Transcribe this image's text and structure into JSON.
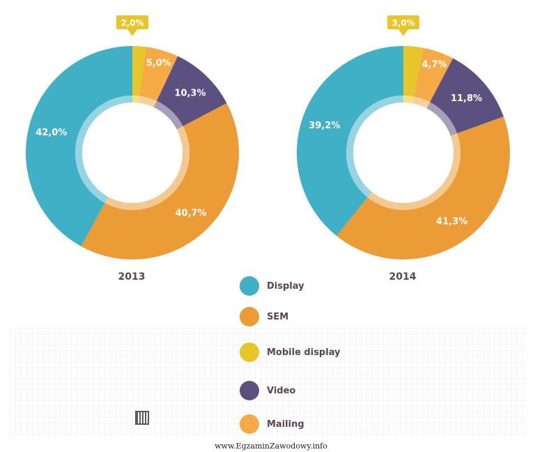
{
  "chart_data": [
    {
      "type": "pie",
      "title": "2013",
      "categories": [
        "Mobile display",
        "Mailing",
        "Video",
        "SEM",
        "Display"
      ],
      "values": [
        2.0,
        5.0,
        10.3,
        40.7,
        42.0
      ],
      "labels": [
        "2,0%",
        "5,0%",
        "10,3%",
        "40,7%",
        "42,0%"
      ]
    },
    {
      "type": "pie",
      "title": "2014",
      "categories": [
        "Mobile display",
        "Mailing",
        "Video",
        "SEM",
        "Display"
      ],
      "values": [
        3.0,
        4.7,
        11.8,
        41.3,
        39.2
      ],
      "labels": [
        "3,0%",
        "4,7%",
        "11,8%",
        "41,3%",
        "39,2%"
      ]
    }
  ],
  "colors": {
    "Display": "#3fb0c6",
    "SEM": "#eb9c36",
    "Mobile display": "#e8c62a",
    "Video": "#5c5080",
    "Mailing": "#f6aa45"
  },
  "legend": [
    {
      "label": "Display",
      "color": "#3fb0c6"
    },
    {
      "label": "SEM",
      "color": "#eb9c36"
    },
    {
      "label": "Mobile display",
      "color": "#e8c62a"
    },
    {
      "label": "Video",
      "color": "#5c5080"
    },
    {
      "label": "Mailing",
      "color": "#f6aa45"
    }
  ],
  "footer": {
    "url": "www.EgzaminZawodowy.info"
  }
}
